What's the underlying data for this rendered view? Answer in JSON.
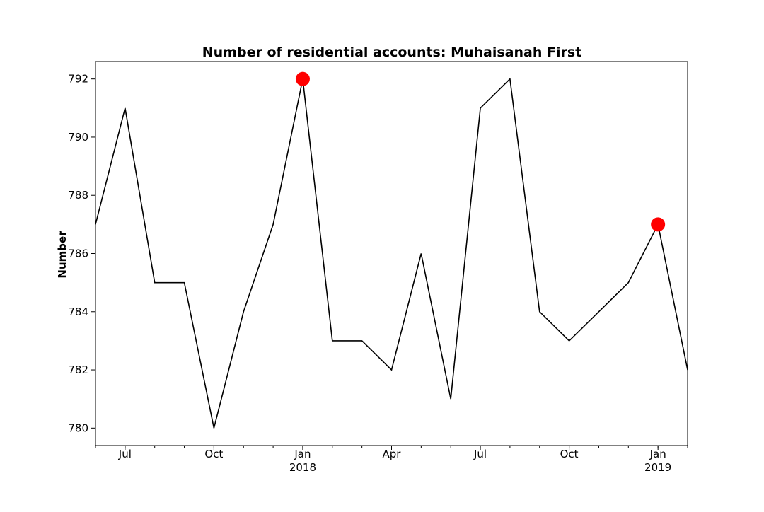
{
  "chart_data": {
    "type": "line",
    "title": "Number of residential accounts: Muhaisanah First",
    "xlabel": "",
    "ylabel": "Number",
    "x": [
      "2017-06",
      "2017-07",
      "2017-08",
      "2017-09",
      "2017-10",
      "2017-11",
      "2017-12",
      "2018-01",
      "2018-02",
      "2018-03",
      "2018-04",
      "2018-05",
      "2018-06",
      "2018-07",
      "2018-08",
      "2018-09",
      "2018-10",
      "2018-11",
      "2018-12",
      "2019-01",
      "2019-02"
    ],
    "series": [
      {
        "values": [
          787,
          791,
          785,
          785,
          780,
          784,
          787,
          792,
          783,
          783,
          782,
          786,
          781,
          791,
          792,
          784,
          783,
          784,
          785,
          787,
          782
        ],
        "color": "#000000"
      }
    ],
    "highlighted_points": {
      "x": [
        "2018-01",
        "2019-01"
      ],
      "values": [
        792,
        787
      ],
      "color": "#ff0000"
    },
    "ylim": [
      779.4,
      792.6
    ],
    "yticks": [
      780,
      782,
      784,
      786,
      788,
      790,
      792
    ],
    "xticks_major": [
      {
        "x": "2017-07",
        "label": "Jul",
        "sublabel": ""
      },
      {
        "x": "2017-10",
        "label": "Oct",
        "sublabel": ""
      },
      {
        "x": "2018-01",
        "label": "Jan",
        "sublabel": "2018"
      },
      {
        "x": "2018-04",
        "label": "Apr",
        "sublabel": ""
      },
      {
        "x": "2018-07",
        "label": "Jul",
        "sublabel": ""
      },
      {
        "x": "2018-10",
        "label": "Oct",
        "sublabel": ""
      },
      {
        "x": "2019-01",
        "label": "Jan",
        "sublabel": "2019"
      }
    ],
    "grid": false,
    "legend": "none"
  }
}
